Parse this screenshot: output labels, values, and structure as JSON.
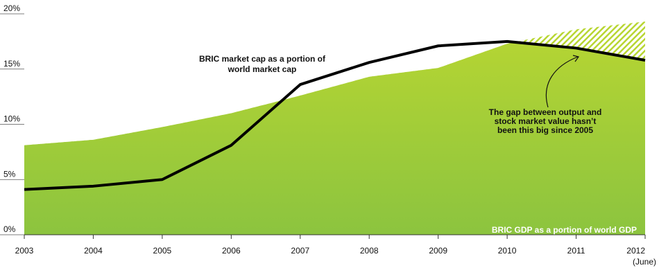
{
  "chart_data": {
    "type": "area-line",
    "categories": [
      "2003",
      "2004",
      "2005",
      "2006",
      "2007",
      "2008",
      "2009",
      "2010",
      "2011",
      "2012"
    ],
    "x_note": "(June)",
    "series": [
      {
        "color": "#9ccb3b",
        "values": [
          8.1,
          8.6,
          9.75,
          11,
          12.6,
          14.3,
          15.1,
          17.3,
          18.6,
          19.3
        ]
      },
      {
        "color": "#000000",
        "values": [
          4.1,
          4.4,
          5.0,
          8.1,
          13.6,
          15.6,
          17.1,
          17.5,
          16.9,
          15.8
        ]
      }
    ],
    "ylim": [
      0,
      20
    ],
    "yticks": [
      {
        "value": 0,
        "label": "0%"
      },
      {
        "value": 5,
        "label": "5%"
      },
      {
        "value": 10,
        "label": "10%"
      },
      {
        "value": 15,
        "label": "15%"
      },
      {
        "value": 20,
        "label": "20%"
      }
    ],
    "annotations": {
      "market_cap": [
        "BRIC market cap as a portion of",
        "world market cap"
      ],
      "gap": [
        "The gap between output and",
        "stock market value hasn’t",
        "been this big since 2005"
      ],
      "gdp": "BRIC GDP as a portion of world GDP"
    }
  }
}
